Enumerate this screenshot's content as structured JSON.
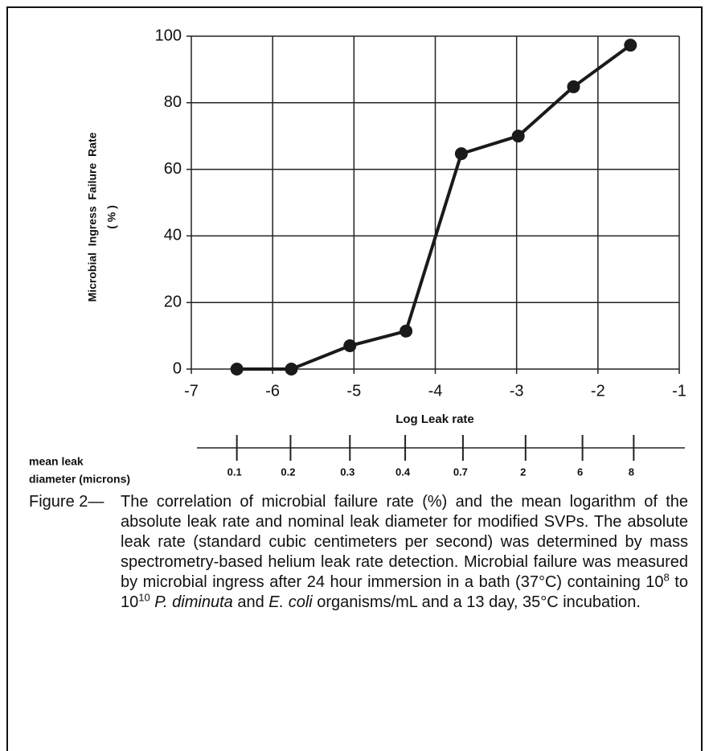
{
  "chart_data": {
    "type": "line",
    "ylabel": [
      "Microbial  Ingress  Failure  Rate",
      "( % )"
    ],
    "xlabel": "Log Leak rate",
    "x": [
      -6.44,
      -5.77,
      -5.05,
      -4.36,
      -3.68,
      -2.98,
      -2.3,
      -1.6
    ],
    "values": [
      0,
      0,
      7,
      11.4,
      64.7,
      70,
      84.8,
      97.3
    ],
    "color": "#1a1a1a",
    "xlim": [
      -7,
      -1
    ],
    "xticks": [
      -7,
      -6,
      -5,
      -4,
      -3,
      -2,
      -1
    ],
    "ylim": [
      0,
      100
    ],
    "yticks": [
      0,
      20,
      40,
      60,
      80,
      100
    ],
    "grid": true,
    "x2label": [
      "mean leak",
      "diameter (microns)"
    ],
    "x2ticks": [
      {
        "value": -6.44,
        "label": "0.1"
      },
      {
        "value": -5.78,
        "label": "0.2"
      },
      {
        "value": -5.05,
        "label": "0.3"
      },
      {
        "value": -4.37,
        "label": "0.4"
      },
      {
        "value": -3.66,
        "label": "0.7"
      },
      {
        "value": -2.89,
        "label": "2"
      },
      {
        "value": -2.19,
        "label": "6"
      },
      {
        "value": -1.56,
        "label": "8"
      }
    ]
  },
  "caption": {
    "label": "Figure 2—",
    "segments": [
      {
        "text": "The correlation of microbial failure rate (%) and the mean logarithm of the absolute leak rate and nominal leak diameter for modified SVPs. The absolute leak rate (standard cubic centimeters per second) was determined by mass spectrometry-based helium leak rate detection. Microbial failure was measured by microbial ingress after 24 hour immersion in a bath (37°C) containing 10"
      },
      {
        "text": "8",
        "style": "sup"
      },
      {
        "text": " to 10"
      },
      {
        "text": "10",
        "style": "sup"
      },
      {
        "text": " "
      },
      {
        "text": "P. diminuta",
        "style": "italic"
      },
      {
        "text": " and "
      },
      {
        "text": "E. coli",
        "style": "italic"
      },
      {
        "text": " organisms/mL and a 13 day, 35°C incubation."
      }
    ]
  }
}
